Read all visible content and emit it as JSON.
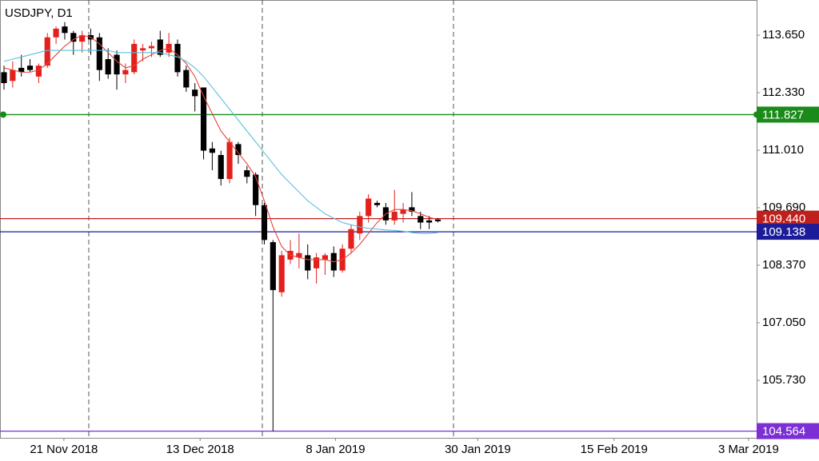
{
  "chart_data": {
    "type": "candlestick",
    "title": "USDJPY, D1",
    "x": [
      0,
      1,
      2,
      3,
      4,
      5,
      6,
      7,
      8,
      9,
      10,
      11,
      12,
      13,
      14,
      15,
      16,
      17,
      18,
      19,
      20,
      21,
      22,
      23,
      24,
      25,
      26,
      27,
      28,
      29,
      30,
      31,
      32,
      33,
      34,
      35,
      36,
      37,
      38,
      39,
      40,
      41,
      42,
      43,
      44,
      45,
      46,
      47,
      48,
      49,
      50
    ],
    "open": [
      112.8,
      112.6,
      112.9,
      112.95,
      112.7,
      112.95,
      113.6,
      113.85,
      113.7,
      113.5,
      113.65,
      113.6,
      113.1,
      113.2,
      112.75,
      112.8,
      113.3,
      113.35,
      113.55,
      113.25,
      113.45,
      112.85,
      112.4,
      112.45,
      111.05,
      110.9,
      110.35,
      111.15,
      110.55,
      110.45,
      109.75,
      108.9,
      107.75,
      108.5,
      108.55,
      108.6,
      108.3,
      108.5,
      108.65,
      108.25,
      108.75,
      109.1,
      109.5,
      109.8,
      109.7,
      109.4,
      109.55,
      109.7,
      109.5,
      109.4,
      109.42
    ],
    "high": [
      112.95,
      113.05,
      113.2,
      113.1,
      113.0,
      113.7,
      113.85,
      113.95,
      113.75,
      113.75,
      113.8,
      113.7,
      113.35,
      113.3,
      113.0,
      113.55,
      113.45,
      113.5,
      113.75,
      113.7,
      113.55,
      112.95,
      112.55,
      112.45,
      111.2,
      111.0,
      111.3,
      111.2,
      110.65,
      110.5,
      109.8,
      108.95,
      108.7,
      108.95,
      109.1,
      108.85,
      108.65,
      108.65,
      108.8,
      108.85,
      109.3,
      109.6,
      110.0,
      109.85,
      109.8,
      110.1,
      109.8,
      110.05,
      109.6,
      109.5,
      109.45
    ],
    "low": [
      112.4,
      112.45,
      112.7,
      112.8,
      112.55,
      112.9,
      113.45,
      113.55,
      113.2,
      113.25,
      113.2,
      112.6,
      112.65,
      112.4,
      112.55,
      112.75,
      113.05,
      113.15,
      113.15,
      113.15,
      112.7,
      112.35,
      111.9,
      110.8,
      110.55,
      110.2,
      110.25,
      110.7,
      110.25,
      109.5,
      108.85,
      104.56,
      107.65,
      108.4,
      108.3,
      108.05,
      107.95,
      108.15,
      108.1,
      108.2,
      108.65,
      108.95,
      109.35,
      109.7,
      109.3,
      109.3,
      109.35,
      109.5,
      109.2,
      109.2,
      109.35
    ],
    "close": [
      112.55,
      112.85,
      112.8,
      112.85,
      112.95,
      113.6,
      113.8,
      113.7,
      113.5,
      113.65,
      113.55,
      112.85,
      112.75,
      112.75,
      112.85,
      113.45,
      113.35,
      113.4,
      113.2,
      113.45,
      112.8,
      112.45,
      112.25,
      111.0,
      110.95,
      110.35,
      111.2,
      110.9,
      110.4,
      109.75,
      108.95,
      107.8,
      108.6,
      108.7,
      108.65,
      108.25,
      108.55,
      108.6,
      108.25,
      108.75,
      109.2,
      109.5,
      109.9,
      109.75,
      109.4,
      109.6,
      109.65,
      109.6,
      109.35,
      109.35,
      109.38
    ],
    "up_color": "#e3201b",
    "down_color": "#000000",
    "overlays": [
      {
        "color": "#e8433a",
        "values": [
          112.9,
          112.85,
          112.8,
          112.8,
          112.85,
          113.0,
          113.2,
          113.4,
          113.55,
          113.65,
          113.6,
          113.45,
          113.25,
          113.05,
          112.9,
          112.95,
          113.1,
          113.2,
          113.3,
          113.35,
          113.2,
          113.0,
          112.7,
          112.25,
          111.85,
          111.45,
          111.2,
          110.95,
          110.7,
          110.4,
          109.85,
          109.25,
          108.8,
          108.6,
          108.55,
          108.5,
          108.5,
          108.5,
          108.45,
          108.5,
          108.65,
          108.85,
          109.1,
          109.35,
          109.55,
          109.65,
          109.65,
          109.62,
          109.55,
          109.47,
          109.42
        ]
      },
      {
        "color": "#5bc0de",
        "values": [
          113.05,
          113.1,
          113.15,
          113.2,
          113.25,
          113.3,
          113.3,
          113.3,
          113.3,
          113.3,
          113.3,
          113.3,
          113.3,
          113.25,
          113.25,
          113.25,
          113.25,
          113.25,
          113.25,
          113.2,
          113.15,
          113.05,
          112.9,
          112.7,
          112.45,
          112.2,
          111.95,
          111.7,
          111.45,
          111.2,
          110.95,
          110.7,
          110.45,
          110.25,
          110.05,
          109.85,
          109.7,
          109.55,
          109.45,
          109.35,
          109.3,
          109.25,
          109.22,
          109.2,
          109.18,
          109.17,
          109.15,
          109.12,
          109.1,
          109.1,
          109.12
        ]
      }
    ],
    "hlines": [
      {
        "value": 111.827,
        "color": "#1a8a1a"
      },
      {
        "value": 109.44,
        "label": "109.440",
        "color": "#c0201b"
      },
      {
        "value": 109.138,
        "color": "#1c1c9a"
      },
      {
        "value": 104.564,
        "color": "#7b2fd4"
      }
    ],
    "vlines": [
      9.77,
      29.77,
      51.8
    ],
    "xlim": [
      -0.46,
      86.73
    ],
    "ylim": [
      104.41,
      114.457
    ],
    "xticks": [
      {
        "value": 6.9,
        "label": "21 Nov 2018"
      },
      {
        "value": 22.6,
        "label": "13 Dec 2018"
      },
      {
        "value": 38.2,
        "label": "8 Jan 2019"
      },
      {
        "value": 54.6,
        "label": "30 Jan 2019"
      },
      {
        "value": 70.3,
        "label": "15 Feb 2019"
      },
      {
        "value": 85.8,
        "label": "3 Mar 2019"
      }
    ],
    "yticks": [
      {
        "value": 113.65,
        "label": "113.650"
      },
      {
        "value": 112.33,
        "label": "112.330"
      },
      {
        "value": 111.01,
        "label": "111.010"
      },
      {
        "value": 109.69,
        "label": "109.690"
      },
      {
        "value": 108.37,
        "label": "108.370"
      },
      {
        "value": 107.05,
        "label": "107.050"
      },
      {
        "value": 105.73,
        "label": "105.730"
      }
    ]
  }
}
